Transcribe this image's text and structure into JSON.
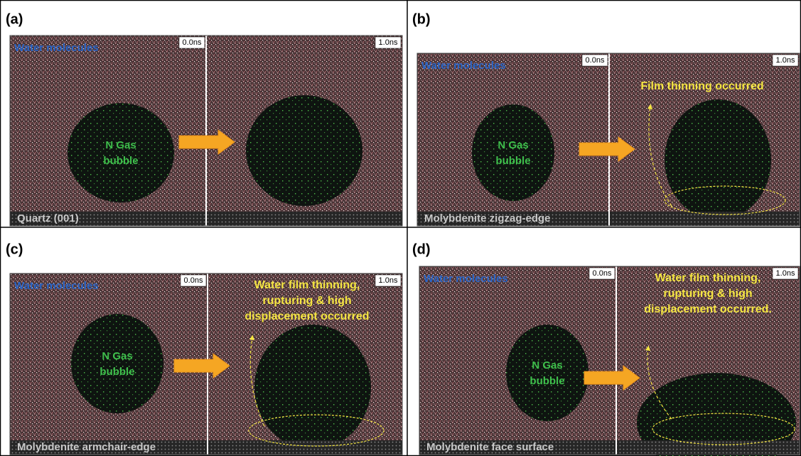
{
  "panels": [
    {
      "label": "(a)",
      "water": "Water molecules",
      "time_start": "0.0ns",
      "time_end": "1.0ns",
      "bubble": [
        "N Gas",
        "bubble"
      ],
      "substrate": "Quartz (001)",
      "annotation": []
    },
    {
      "label": "(b)",
      "water": "Water molecules",
      "time_start": "0.0ns",
      "time_end": "1.0ns",
      "bubble": [
        "N Gas",
        "bubble"
      ],
      "substrate": "Molybdenite zigzag-edge",
      "annotation": [
        "Film thinning occurred"
      ]
    },
    {
      "label": "(c)",
      "water": "Water molecules",
      "time_start": "0.0ns",
      "time_end": "1.0ns",
      "bubble": [
        "N Gas",
        "bubble"
      ],
      "substrate": "Molybdenite armchair-edge",
      "annotation": [
        "Water film thinning,",
        "rupturing & high",
        "displacement occurred"
      ]
    },
    {
      "label": "(d)",
      "water": "Water molecules",
      "time_start": "0.0ns",
      "time_end": "1.0ns",
      "bubble": [
        "N Gas",
        "bubble"
      ],
      "substrate": "Molybdenite face surface",
      "annotation": [
        "Water film thinning,",
        "rupturing & high",
        "displacement occurred."
      ]
    }
  ]
}
